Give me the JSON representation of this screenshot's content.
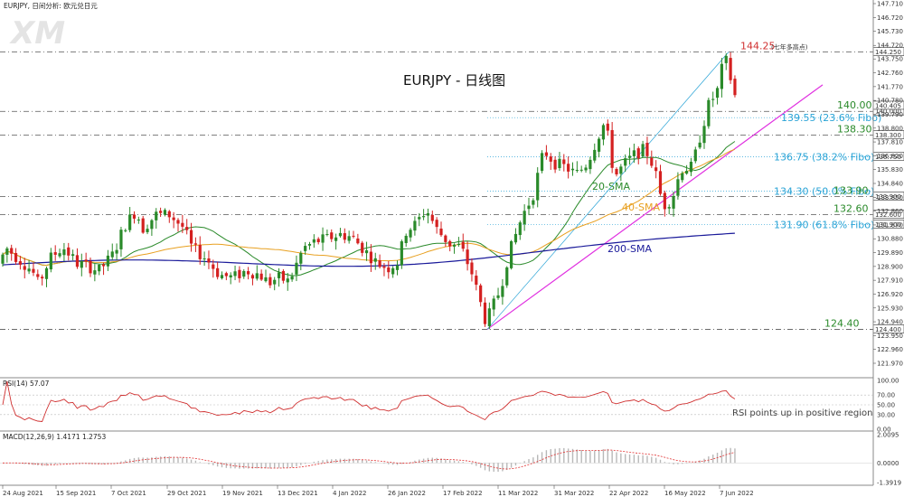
{
  "header": {
    "main": "EURJPY, 日间分析: 欧元兑日元",
    "rsi": "RSI(14) 57.07",
    "macd": "MACD(12,26,9) 1.4171 1.2753"
  },
  "logo": "XM",
  "title": "EURJPY - 日线图",
  "colors": {
    "bull": "#2a8a2a",
    "bear": "#d42020",
    "sma20": "#2a8a2a",
    "sma40": "#e8a020",
    "sma200": "#1a1a9a",
    "trend": "#e030e0",
    "fibo": "#29a3d6",
    "rsi": "#d03030",
    "macd": "#e03030",
    "hist": "#b8b8b8",
    "price_label": "#d03030"
  },
  "chart_data": [
    {
      "type": "candlestick",
      "ylim": [
        121.97,
        147.71
      ],
      "y_ticks": [
        "147.710",
        "146.720",
        "145.730",
        "144.720",
        "143.750",
        "142.760",
        "141.770",
        "140.780",
        "139.790",
        "138.800",
        "137.810",
        "136.820",
        "135.830",
        "134.840",
        "133.850",
        "132.860",
        "131.870",
        "130.880",
        "129.890",
        "128.900",
        "127.910",
        "126.920",
        "125.930",
        "124.940",
        "123.950",
        "122.960",
        "121.970"
      ],
      "x_labels": [
        "24 Aug 2021",
        "15 Sep 2021",
        "7 Oct 2021",
        "29 Oct 2021",
        "19 Nov 2021",
        "13 Dec 2021",
        "4 Jan 2022",
        "26 Jan 2022",
        "17 Feb 2022",
        "11 Mar 2022",
        "31 Mar 2022",
        "22 Apr 2022",
        "16 May 2022",
        "7 Jun 2022"
      ],
      "series_labels": [
        "20-SMA",
        "40-SMA",
        "200-SMA"
      ],
      "levels": [
        {
          "value": 144.25,
          "label": "144.25",
          "suffix": "(七年多高点)",
          "box": "144.250",
          "style": "dashed"
        },
        {
          "value": 140.0,
          "label": "140.00",
          "box": "140.000",
          "style": "dashed"
        },
        {
          "value": 139.55,
          "label": "139.55 (23.6% Fibo)",
          "box": "",
          "style": "fibo"
        },
        {
          "value": 138.3,
          "label": "138.30",
          "box": "138.300",
          "style": "dashed"
        },
        {
          "value": 136.75,
          "label": "136.75 (38.2% Fibo)",
          "box": "136.750",
          "style": "fibo"
        },
        {
          "value": 134.3,
          "label": "134.30 (50.0% Fibo)",
          "box": "",
          "style": "fibo"
        },
        {
          "value": 133.9,
          "label": "133.90",
          "box": "133.900",
          "style": "dashed"
        },
        {
          "value": 132.6,
          "label": "132.60",
          "box": "132.600",
          "style": "dashed"
        },
        {
          "value": 131.9,
          "label": "131.90 (61.8% Fibo)",
          "box": "131.900",
          "style": "fibo"
        },
        {
          "value": 124.4,
          "label": "124.40",
          "box": "124.400",
          "style": "dashed"
        }
      ],
      "last_price": "140.405",
      "trendline": [
        [
          124.4
        ],
        [
          141.9
        ]
      ]
    },
    {
      "type": "line",
      "name": "RSI(14)",
      "y_ticks": [
        "100.00",
        "70.00",
        "50.00",
        "30.00",
        "0.00"
      ],
      "ylim": [
        0,
        100
      ],
      "last": "57.07",
      "annotation": "RSI points up in positive region"
    },
    {
      "type": "bar+line",
      "name": "MACD(12,26,9)",
      "y_ticks": [
        "2.0095",
        "0.0000",
        "-1.3919"
      ],
      "ylim": [
        -1.3919,
        2.0095
      ],
      "values": [
        1.4171,
        1.2753
      ]
    }
  ]
}
